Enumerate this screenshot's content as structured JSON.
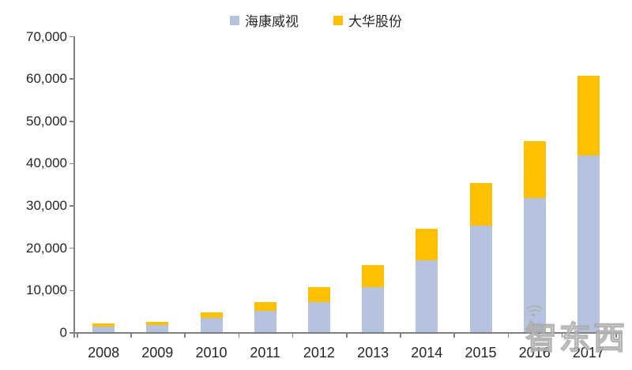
{
  "chart_data": {
    "type": "bar",
    "stacked": true,
    "title": "",
    "xlabel": "",
    "ylabel": "",
    "categories": [
      "2008",
      "2009",
      "2010",
      "2011",
      "2012",
      "2013",
      "2014",
      "2015",
      "2016",
      "2017"
    ],
    "series": [
      {
        "key": "hikvision",
        "name": "海康威视",
        "color": "#B6C3DE",
        "values": [
          1450,
          1800,
          3600,
          5232,
          7214,
          10746,
          17233,
          25271,
          31924,
          41905
        ]
      },
      {
        "key": "dahua",
        "name": "大华股份",
        "color": "#FFC000",
        "values": [
          800,
          900,
          1250,
          2079,
          3539,
          5374,
          7332,
          10058,
          13329,
          18844
        ]
      }
    ],
    "ylim": [
      0,
      70000
    ],
    "ytick_interval": 10000,
    "ytick_labels": [
      "0",
      "10,000",
      "20,000",
      "30,000",
      "40,000",
      "50,000",
      "60,000",
      "70,000"
    ],
    "grid": false,
    "legend_position": "top-center"
  },
  "watermark": {
    "text": "智东西"
  },
  "colors": {
    "axis": "#7F7F7F",
    "text": "#262626",
    "background": "#FFFFFF"
  }
}
